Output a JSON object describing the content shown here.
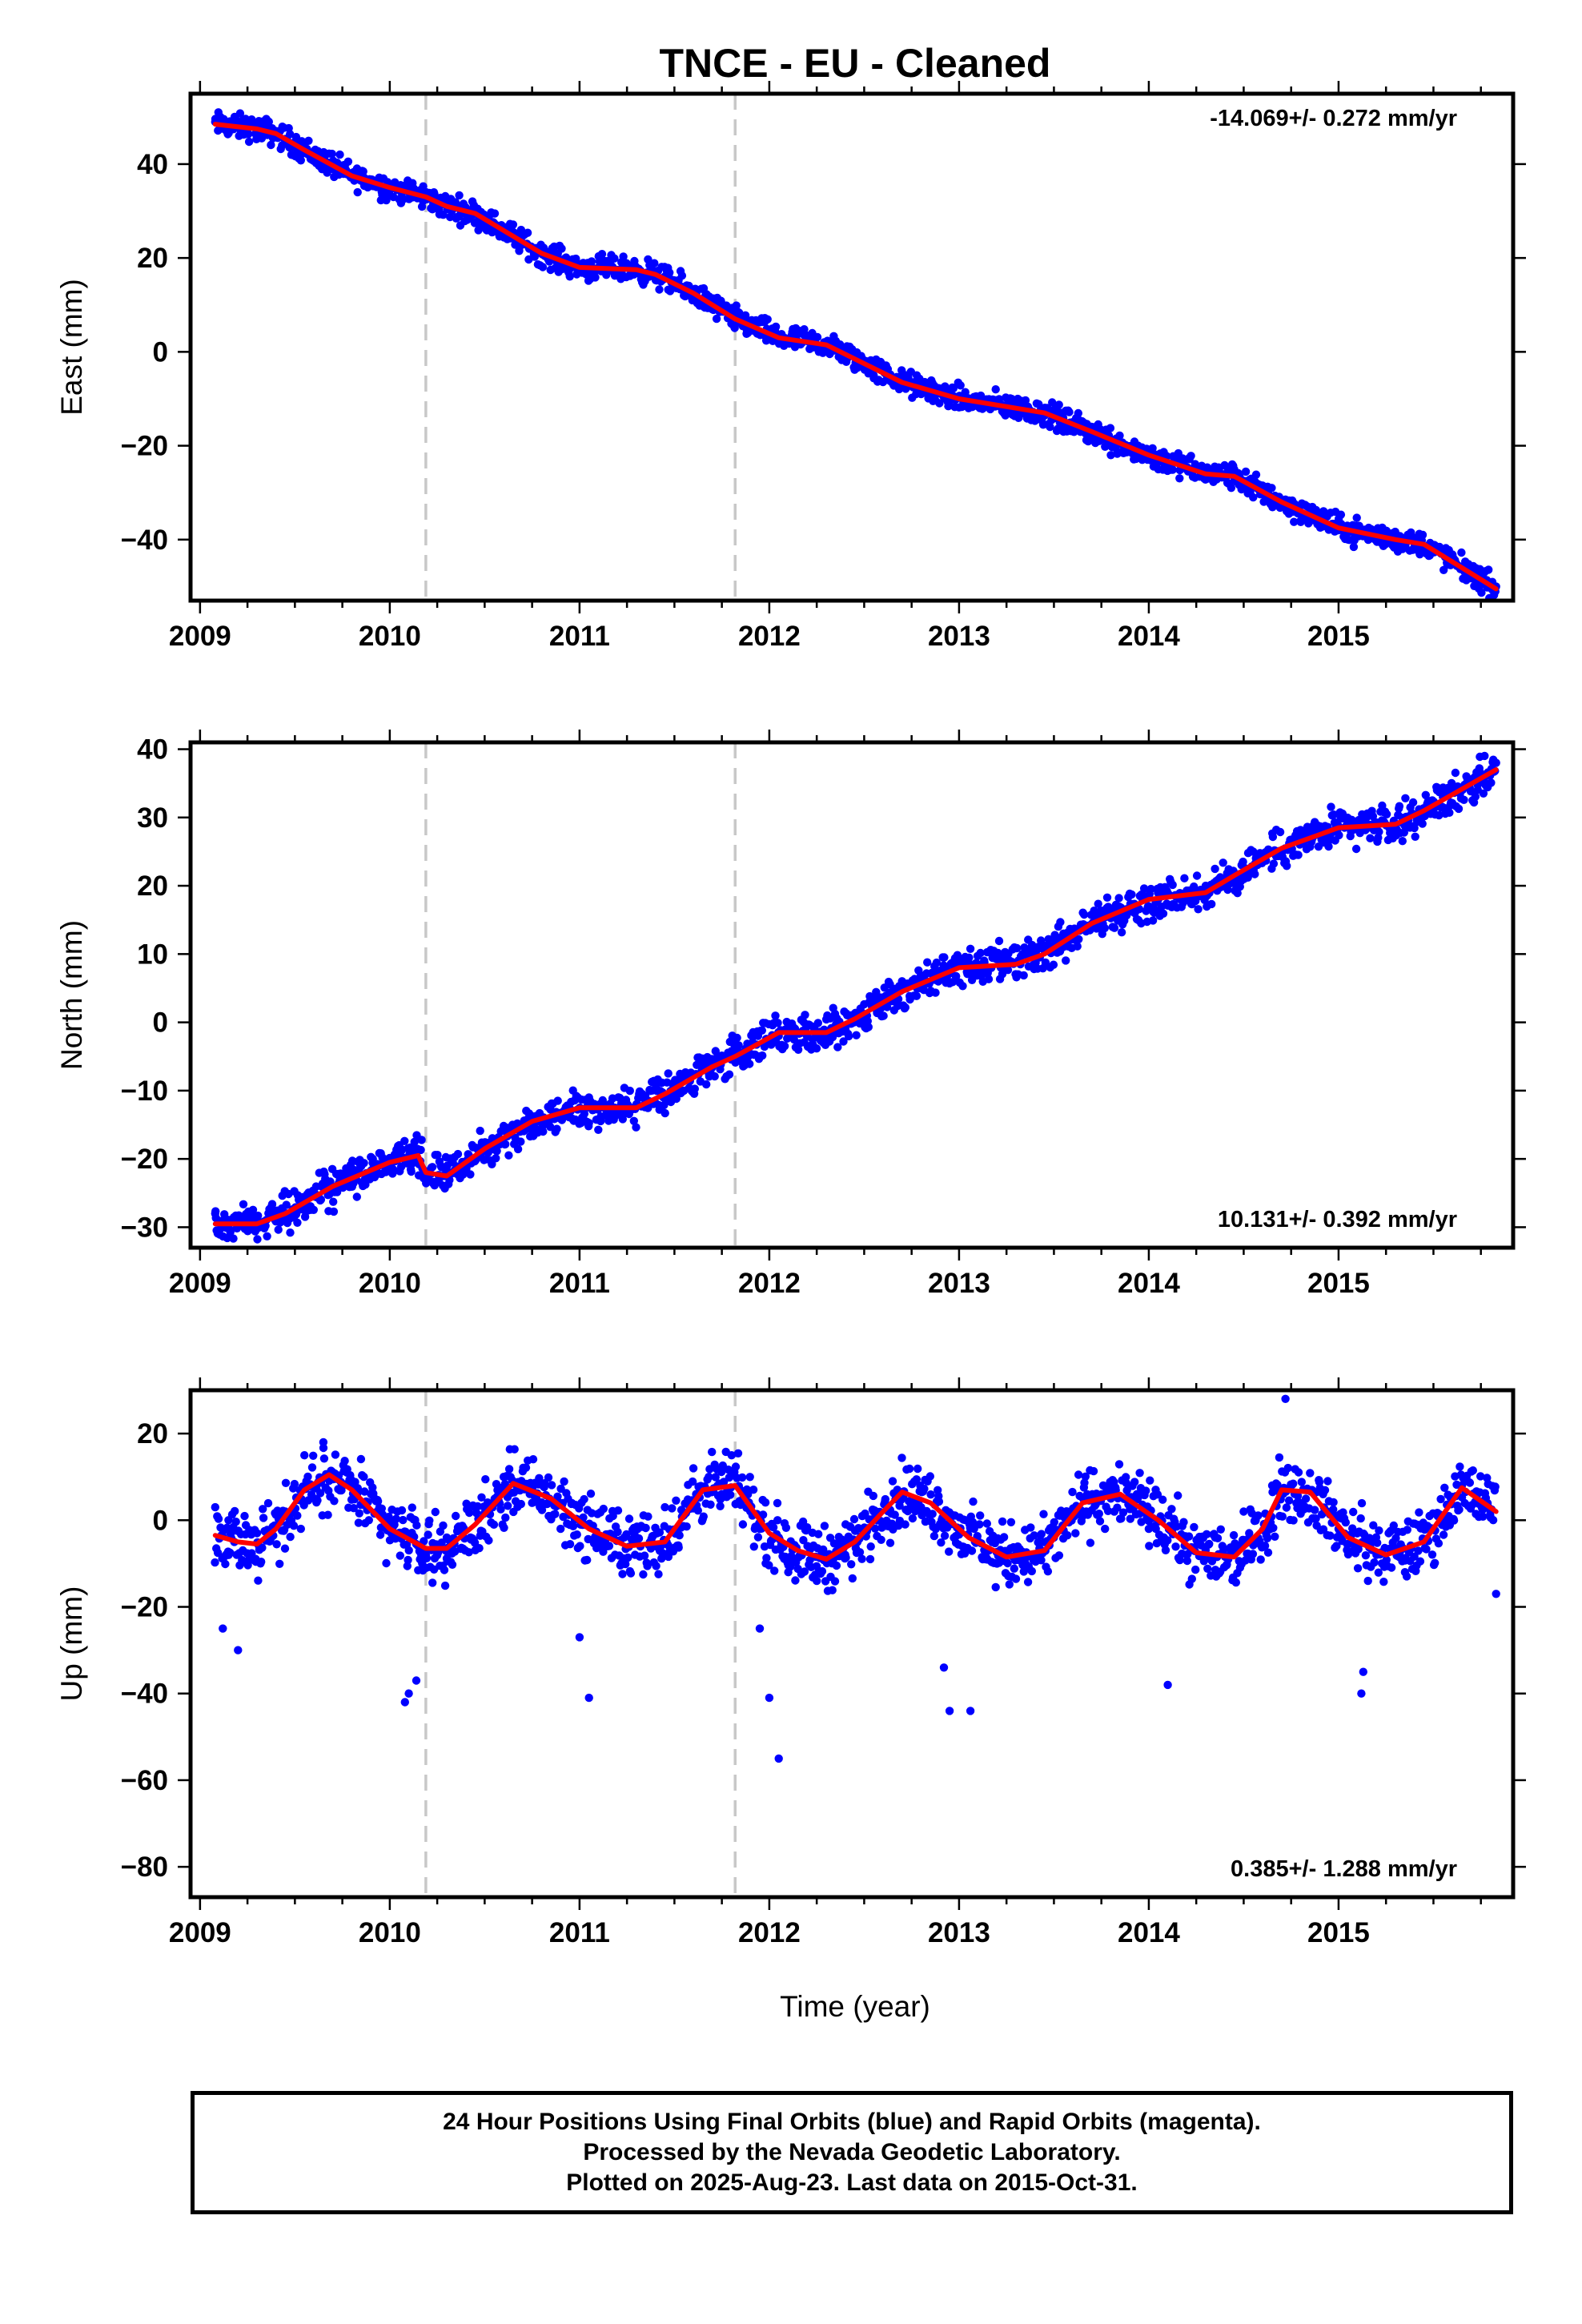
{
  "title": "TNCE  - EU - Cleaned",
  "x_tick_labels": [
    "2009",
    "2010",
    "2011",
    "2012",
    "2013",
    "2014",
    "2015"
  ],
  "xlabel": "Time (year)",
  "footer": {
    "line1": "24 Hour Positions Using Final Orbits (blue) and Rapid Orbits (magenta).",
    "line2": "Processed by the Nevada Geodetic Laboratory.",
    "line3": "Plotted on 2025-Aug-23. Last data on 2015-Oct-31."
  },
  "colors": {
    "points": "#0000ff",
    "model": "#ff0000",
    "break_lines": "#c8c8c8",
    "frame": "#000000"
  },
  "chart_data": [
    {
      "type": "scatter",
      "ylabel": "East (mm)",
      "rate_text": "-14.069+/- 0.272 mm/yr",
      "xlim": [
        2008.95,
        2015.92
      ],
      "ylim": [
        -53,
        55
      ],
      "y_ticks": [
        -40,
        -20,
        0,
        20,
        40
      ],
      "y_tick_labels": [
        "−40",
        "−20",
        "0",
        "20",
        "40"
      ],
      "x_ticks": [
        2009,
        2010,
        2011,
        2012,
        2013,
        2014,
        2015
      ],
      "breaks": [
        2010.19,
        2011.82
      ],
      "series": [
        {
          "type": "scatter",
          "x": [
            2009.08,
            2009.3,
            2009.55,
            2009.8,
            2010.05,
            2010.3,
            2010.55,
            2010.8,
            2011.05,
            2011.3,
            2011.55,
            2011.8,
            2012.05,
            2012.3,
            2012.55,
            2012.8,
            2013.05,
            2013.3,
            2013.55,
            2013.8,
            2014.05,
            2014.3,
            2014.55,
            2014.8,
            2015.05,
            2015.3,
            2015.55,
            2015.83
          ],
          "y": [
            49,
            47.5,
            44,
            38,
            35,
            31,
            27,
            21,
            18,
            17,
            12,
            6,
            2,
            2,
            -5,
            -9,
            -12,
            -13,
            -17,
            -22,
            -25,
            -26,
            -31,
            -36,
            -40,
            -40,
            -43,
            -50
          ]
        },
        {
          "type": "line",
          "x": [
            2009.08,
            2009.3,
            2009.4,
            2009.55,
            2009.8,
            2010.0,
            2010.19,
            2010.3,
            2010.45,
            2010.8,
            2011.0,
            2011.3,
            2011.4,
            2011.6,
            2011.82,
            2012.05,
            2012.3,
            2012.45,
            2012.7,
            2013.0,
            2013.3,
            2013.45,
            2013.7,
            2014.0,
            2014.3,
            2014.45,
            2014.7,
            2015.0,
            2015.3,
            2015.45,
            2015.83
          ],
          "y": [
            48.5,
            47.5,
            46.5,
            43,
            37.5,
            35,
            33,
            31,
            29.5,
            21,
            18,
            17.5,
            16.5,
            12.5,
            7,
            3,
            1.5,
            -1.5,
            -6.5,
            -10,
            -12,
            -13,
            -17,
            -22,
            -26,
            -26.5,
            -32,
            -37.5,
            -40,
            -41,
            -50.5
          ]
        }
      ]
    },
    {
      "type": "scatter",
      "ylabel": "North (mm)",
      "rate_text": "10.131+/- 0.392 mm/yr",
      "xlim": [
        2008.95,
        2015.92
      ],
      "ylim": [
        -33,
        41
      ],
      "y_ticks": [
        -30,
        -20,
        -10,
        0,
        10,
        20,
        30,
        40
      ],
      "y_tick_labels": [
        "−30",
        "−20",
        "−10",
        "0",
        "10",
        "20",
        "30",
        "40"
      ],
      "x_ticks": [
        2009,
        2010,
        2011,
        2012,
        2013,
        2014,
        2015
      ],
      "breaks": [
        2010.19,
        2011.82
      ],
      "series": [
        {
          "type": "scatter",
          "x": [
            2009.08,
            2009.3,
            2009.55,
            2009.8,
            2010.05,
            2010.3,
            2010.55,
            2010.8,
            2011.05,
            2011.3,
            2011.55,
            2011.8,
            2012.05,
            2012.3,
            2012.55,
            2012.8,
            2013.05,
            2013.3,
            2013.55,
            2013.8,
            2014.05,
            2014.3,
            2014.55,
            2014.8,
            2015.05,
            2015.3,
            2015.55,
            2015.83
          ],
          "y": [
            -28,
            -29,
            -26,
            -22,
            -18,
            -22,
            -18,
            -14,
            -11,
            -12,
            -10,
            -5,
            -2,
            -2,
            3,
            6,
            8,
            7,
            13,
            16,
            18,
            20,
            25,
            28,
            29,
            29,
            33,
            38
          ]
        },
        {
          "type": "line",
          "x": [
            2009.08,
            2009.3,
            2009.45,
            2009.7,
            2010.0,
            2010.15,
            2010.19,
            2010.3,
            2010.5,
            2010.75,
            2011.0,
            2011.3,
            2011.45,
            2011.7,
            2011.82,
            2012.05,
            2012.3,
            2012.45,
            2012.7,
            2013.0,
            2013.3,
            2013.45,
            2013.7,
            2014.0,
            2014.3,
            2014.45,
            2014.7,
            2015.0,
            2015.3,
            2015.45,
            2015.83
          ],
          "y": [
            -29.5,
            -29.5,
            -28,
            -24,
            -20.5,
            -19.5,
            -22,
            -22.5,
            -18.5,
            -14.5,
            -12.5,
            -12.5,
            -10.5,
            -6.5,
            -5,
            -1.5,
            -1.5,
            0.5,
            4.5,
            8,
            8.5,
            10,
            14.5,
            18,
            19,
            21.5,
            25.5,
            28.5,
            29,
            31,
            37
          ]
        }
      ]
    },
    {
      "type": "scatter",
      "ylabel": "Up (mm)",
      "rate_text": "0.385+/- 1.288 mm/yr",
      "xlim": [
        2008.95,
        2015.92
      ],
      "ylim": [
        -87,
        30
      ],
      "y_ticks": [
        -80,
        -60,
        -40,
        -20,
        0,
        20
      ],
      "y_tick_labels": [
        "−80",
        "−60",
        "−40",
        "−20",
        "0",
        "20"
      ],
      "x_ticks": [
        2009,
        2010,
        2011,
        2012,
        2013,
        2014,
        2015
      ],
      "breaks": [
        2010.19,
        2011.82
      ],
      "series": [
        {
          "type": "scatter",
          "x": [
            2009.08,
            2009.15,
            2009.3,
            2009.45,
            2009.55,
            2009.65,
            2009.8,
            2010.0,
            2010.19,
            2010.3,
            2010.45,
            2010.6,
            2010.75,
            2010.9,
            2011.1,
            2011.3,
            2011.45,
            2011.6,
            2011.75,
            2011.95,
            2012.1,
            2012.25,
            2012.4,
            2012.55,
            2012.65,
            2012.8,
            2013.0,
            2013.2,
            2013.35,
            2013.5,
            2013.65,
            2013.8,
            2014.0,
            2014.2,
            2014.35,
            2014.5,
            2014.65,
            2014.8,
            2015.0,
            2015.2,
            2015.35,
            2015.5,
            2015.65,
            2015.8,
            2009.12,
            2009.2,
            2010.08,
            2010.1,
            2010.14,
            2011.0,
            2011.05,
            2011.95,
            2012.0,
            2012.05,
            2012.92,
            2012.95,
            2013.06,
            2014.1,
            2015.12,
            2015.13,
            2015.83,
            2014.72
          ],
          "y": [
            3,
            0,
            -3,
            2,
            15,
            18,
            8,
            -2,
            -8,
            -4,
            3,
            10,
            4,
            -2,
            -6,
            -4,
            3,
            12,
            6,
            -2,
            -12,
            -14,
            -8,
            2,
            9,
            3,
            -3,
            -10,
            -10,
            -4,
            2,
            5,
            -2,
            -8,
            -4,
            2,
            8,
            4,
            -2,
            -8,
            -12,
            -2,
            8,
            2,
            -25,
            -30,
            -42,
            -40,
            -37,
            -27,
            -41,
            -25,
            -41,
            -55,
            -34,
            -44,
            -44,
            -38,
            -40,
            -35,
            -17,
            28
          ]
        },
        {
          "type": "line",
          "x": [
            2009.08,
            2009.2,
            2009.3,
            2009.4,
            2009.55,
            2009.68,
            2009.8,
            2010.0,
            2010.19,
            2010.3,
            2010.45,
            2010.65,
            2010.85,
            2011.05,
            2011.25,
            2011.45,
            2011.65,
            2011.82,
            2012.0,
            2012.15,
            2012.3,
            2012.45,
            2012.6,
            2012.7,
            2012.85,
            2013.05,
            2013.25,
            2013.45,
            2013.65,
            2013.85,
            2014.05,
            2014.25,
            2014.45,
            2014.6,
            2014.7,
            2014.85,
            2015.05,
            2015.25,
            2015.45,
            2015.65,
            2015.83
          ],
          "y": [
            -3.5,
            -5,
            -5.5,
            -2,
            7,
            10.5,
            7,
            -2,
            -6.5,
            -6.5,
            -1,
            8.5,
            5,
            -2,
            -6,
            -5,
            7,
            8,
            -3,
            -7,
            -9,
            -5,
            2,
            6.5,
            4,
            -4,
            -8.5,
            -7,
            4,
            6,
            0,
            -7.5,
            -8.5,
            -2,
            7,
            6.5,
            -4,
            -8,
            -5,
            7.5,
            2
          ]
        }
      ]
    }
  ]
}
